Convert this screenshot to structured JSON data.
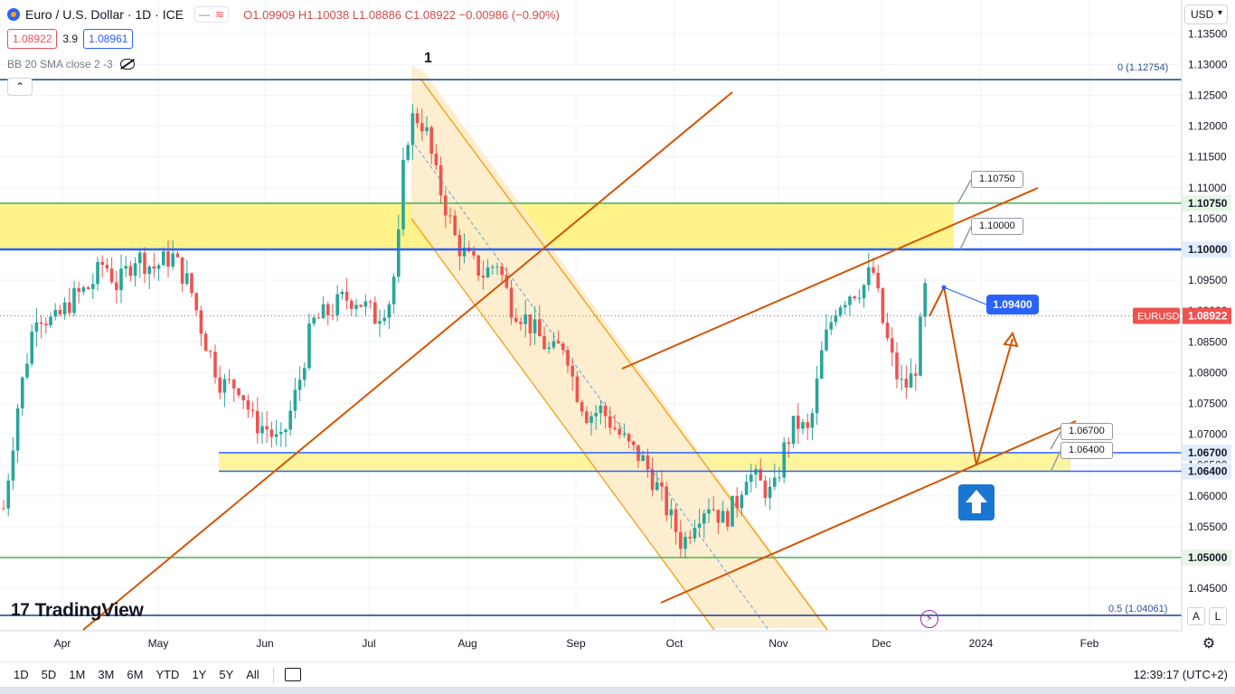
{
  "header": {
    "symbol": "Euro / U.S. Dollar · 1D · ICE",
    "ohlc": "O1.09909 H1.10038 L1.08886 C1.08922 −0.00986 (−0.90%)",
    "bid": "1.08922",
    "spread": "3.9",
    "ask": "1.08961",
    "indicator": "BB 20 SMA close 2 -3",
    "currency": "USD"
  },
  "branding": {
    "logo_text": "TradingView",
    "logo_mark": "17"
  },
  "timeframes": [
    "1D",
    "5D",
    "1M",
    "3M",
    "6M",
    "YTD",
    "1Y",
    "5Y",
    "All"
  ],
  "clock": "12:39:17 (UTC+2)",
  "right_buttons": [
    "A",
    "L"
  ],
  "annotations": {
    "wave_label": "1",
    "fib_0": "0 (1.12754)",
    "fib_05": "0.5 (1.04061)",
    "target_bubble": "1.09400",
    "callout_1": "1.10750",
    "callout_2": "1.10000",
    "callout_3": "1.06700",
    "callout_4": "1.06400"
  },
  "colors": {
    "up": "#26a69a",
    "down": "#ef5350",
    "trendline": "#d35400",
    "channel_fill": "#fdebc8",
    "zone_fill": "#fff176",
    "level_blue": "#2962ff",
    "level_green": "#4caf50",
    "fib_line": "#1a3d8f"
  },
  "chart_data": {
    "type": "candlestick",
    "symbol": "EURUSD",
    "timeframe": "1D",
    "y_axis": {
      "range": [
        1.0375,
        1.1366
      ],
      "ticks": [
        1.045,
        1.05,
        1.055,
        1.06,
        1.065,
        1.07,
        1.075,
        1.08,
        1.085,
        1.09,
        1.095,
        1.1,
        1.105,
        1.11,
        1.115,
        1.12,
        1.125,
        1.13,
        1.135
      ],
      "tick_labels": [
        "1.04500",
        "1.05000",
        "1.05500",
        "1.06000",
        "1.06500",
        "1.07000",
        "1.07500",
        "1.08000",
        "1.08500",
        "1.09000",
        "1.09500",
        "1.10000",
        "1.10500",
        "1.11000",
        "1.11500",
        "1.12000",
        "1.12500",
        "1.13000",
        "1.13500"
      ]
    },
    "x_axis": {
      "labels": [
        "Apr",
        "May",
        "Jun",
        "Jul",
        "Aug",
        "Sep",
        "Oct",
        "Nov",
        "Dec",
        "2024",
        "Feb"
      ]
    },
    "last_price": {
      "label": "EURUSD",
      "value": "1.08922"
    },
    "levels": [
      {
        "value": 1.1075,
        "label": "1.10750",
        "color": "#4caf50"
      },
      {
        "value": 1.1,
        "label": "1.10000",
        "color": "#2962ff"
      },
      {
        "value": 1.067,
        "label": "1.06700",
        "color": "#2962ff"
      },
      {
        "value": 1.064,
        "label": "1.06400",
        "color": "#2962ff"
      },
      {
        "value": 1.05,
        "label": "1.05000",
        "color": "#4caf50"
      }
    ],
    "fib_levels": [
      {
        "value": 1.12754,
        "label": "0 (1.12754)"
      },
      {
        "value": 1.04061,
        "label": "0.5 (1.04061)"
      }
    ],
    "zones": [
      {
        "from": 1.1,
        "to": 1.1075
      },
      {
        "from": 1.064,
        "to": 1.067
      }
    ],
    "path_points": [
      {
        "date": "Dec 15",
        "value": 1.094
      },
      {
        "date": "late Dec",
        "value": 1.065
      },
      {
        "date": "early Jan",
        "value": 1.0855
      }
    ]
  }
}
